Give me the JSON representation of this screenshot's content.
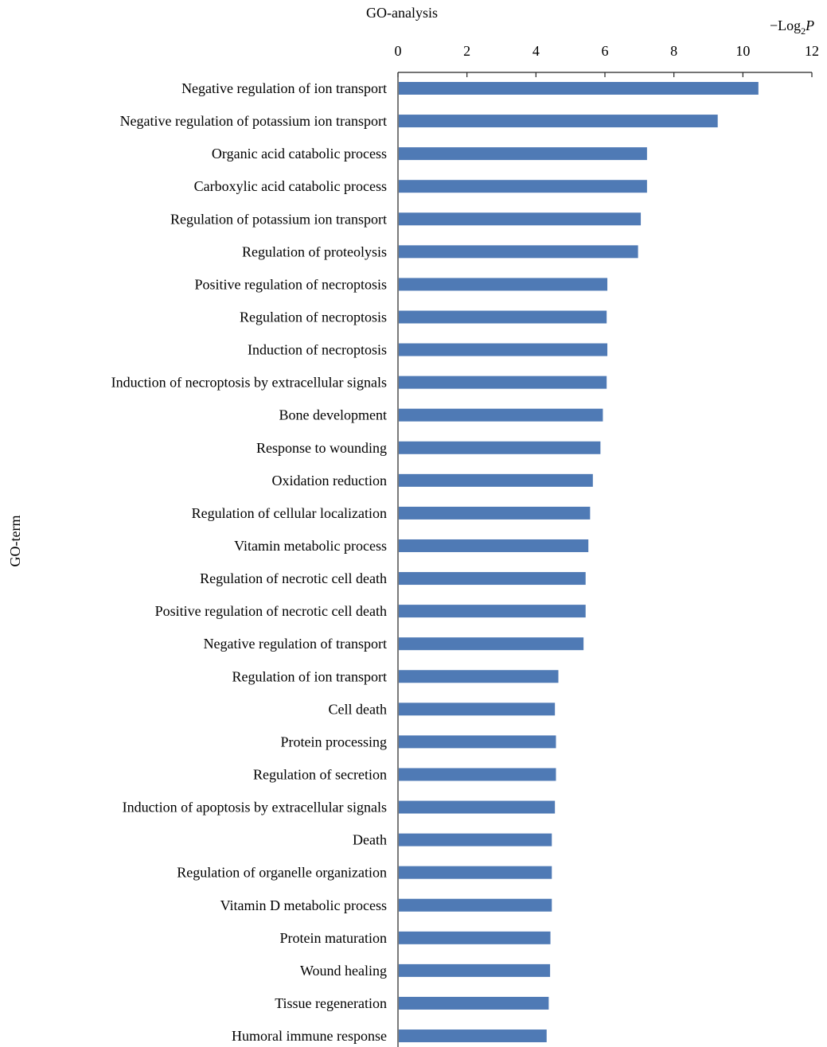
{
  "chart_data": {
    "type": "bar",
    "orientation": "horizontal",
    "title": "GO-analysis",
    "xlabel": "−Log₂ P",
    "xlabel_parts": {
      "prefix": "−Log",
      "subscript": "2",
      "suffix": "P"
    },
    "ylabel": "GO-term",
    "xlim": [
      0,
      12
    ],
    "xticks": [
      "0",
      "2",
      "4",
      "6",
      "8",
      "10",
      "12"
    ],
    "x_axis_position": "top",
    "grid": false,
    "bar_color": "#4f7ab5",
    "categories": [
      "Negative regulation of ion transport",
      "Negative regulation of potassium ion transport",
      "Organic acid catabolic process",
      "Carboxylic acid catabolic process",
      "Regulation of potassium ion transport",
      "Regulation of proteolysis",
      "Positive regulation of necroptosis",
      "Regulation of necroptosis",
      "Induction of necroptosis",
      "Induction of necroptosis by extracellular signals",
      "Bone development",
      "Response to wounding",
      "Oxidation reduction",
      "Regulation of cellular localization",
      "Vitamin metabolic process",
      "Regulation of necrotic cell death",
      "Positive regulation of necrotic cell death",
      "Negative regulation of transport",
      "Regulation of ion transport",
      "Cell death",
      "Protein processing",
      "Regulation of secretion",
      "Induction of apoptosis by extracellular signals",
      "Death",
      "Regulation of organelle organization",
      "Vitamin D metabolic process",
      "Protein maturation",
      "Wound healing",
      "Tissue regeneration",
      "Humoral immune response"
    ],
    "values": [
      10.45,
      9.27,
      7.22,
      7.22,
      7.04,
      6.96,
      6.07,
      6.05,
      6.07,
      6.05,
      5.94,
      5.87,
      5.65,
      5.57,
      5.52,
      5.44,
      5.44,
      5.38,
      4.65,
      4.55,
      4.58,
      4.58,
      4.55,
      4.46,
      4.46,
      4.46,
      4.42,
      4.41,
      4.37,
      4.31
    ]
  }
}
